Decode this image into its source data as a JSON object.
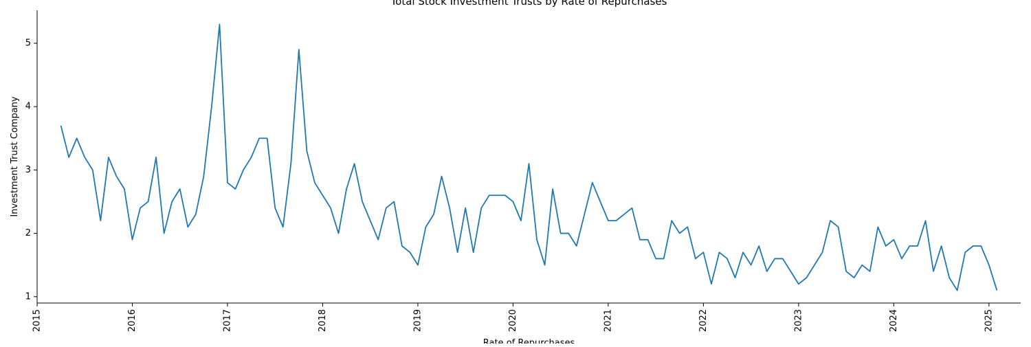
{
  "chart_data": {
    "type": "line",
    "title": "Total Stock Investment Trusts by Rate of Repurchases",
    "xlabel": "Rate of Repurchases",
    "ylabel": "Investment Trust Company",
    "x_ticks": [
      "2015",
      "2016",
      "2017",
      "2018",
      "2019",
      "2020",
      "2021",
      "2022",
      "2023",
      "2024",
      "2025"
    ],
    "y_ticks": [
      "1",
      "2",
      "3",
      "4",
      "5"
    ],
    "xlim": [
      "2015-01",
      "2025-05"
    ],
    "ylim": [
      0.9,
      5.52
    ],
    "grid": false,
    "legend": "none",
    "series": [
      {
        "color": "#1f77b4",
        "x": [
          "2015-04",
          "2015-05",
          "2015-06",
          "2015-07",
          "2015-08",
          "2015-09",
          "2015-10",
          "2015-11",
          "2015-12",
          "2016-01",
          "2016-02",
          "2016-03",
          "2016-04",
          "2016-05",
          "2016-06",
          "2016-07",
          "2016-08",
          "2016-09",
          "2016-10",
          "2016-11",
          "2016-12",
          "2017-01",
          "2017-02",
          "2017-03",
          "2017-04",
          "2017-05",
          "2017-06",
          "2017-07",
          "2017-08",
          "2017-09",
          "2017-10",
          "2017-11",
          "2017-12",
          "2018-01",
          "2018-02",
          "2018-03",
          "2018-04",
          "2018-05",
          "2018-06",
          "2018-07",
          "2018-08",
          "2018-09",
          "2018-10",
          "2018-11",
          "2018-12",
          "2019-01",
          "2019-02",
          "2019-03",
          "2019-04",
          "2019-05",
          "2019-06",
          "2019-07",
          "2019-08",
          "2019-09",
          "2019-10",
          "2019-11",
          "2019-12",
          "2020-01",
          "2020-02",
          "2020-03",
          "2020-04",
          "2020-05",
          "2020-06",
          "2020-07",
          "2020-08",
          "2020-09",
          "2020-10",
          "2020-11",
          "2020-12",
          "2021-01",
          "2021-02",
          "2021-03",
          "2021-04",
          "2021-05",
          "2021-06",
          "2021-07",
          "2021-08",
          "2021-09",
          "2021-10",
          "2021-11",
          "2021-12",
          "2022-01",
          "2022-02",
          "2022-03",
          "2022-04",
          "2022-05",
          "2022-06",
          "2022-07",
          "2022-08",
          "2022-09",
          "2022-10",
          "2022-11",
          "2022-12",
          "2023-01",
          "2023-02",
          "2023-03",
          "2023-04",
          "2023-05",
          "2023-06",
          "2023-07",
          "2023-08",
          "2023-09",
          "2023-10",
          "2023-11",
          "2023-12",
          "2024-01",
          "2024-02",
          "2024-03",
          "2024-04",
          "2024-05",
          "2024-06",
          "2024-07",
          "2024-08",
          "2024-09",
          "2024-10",
          "2024-11",
          "2024-12",
          "2025-01",
          "2025-02"
        ],
        "values": [
          3.7,
          3.2,
          3.5,
          3.2,
          3.0,
          2.2,
          3.2,
          2.9,
          2.7,
          1.9,
          2.4,
          2.5,
          3.2,
          2.0,
          2.5,
          2.7,
          2.1,
          2.3,
          2.9,
          4.0,
          5.3,
          2.8,
          2.7,
          3.0,
          3.2,
          3.5,
          3.5,
          2.4,
          2.1,
          3.1,
          4.9,
          3.3,
          2.8,
          2.6,
          2.4,
          2.0,
          2.7,
          3.1,
          2.5,
          2.2,
          1.9,
          2.4,
          2.5,
          1.8,
          1.7,
          1.5,
          2.1,
          2.3,
          2.9,
          2.4,
          1.7,
          2.4,
          1.7,
          2.4,
          2.6,
          2.6,
          2.6,
          2.5,
          2.2,
          3.1,
          1.9,
          1.5,
          2.7,
          2.0,
          2.0,
          1.8,
          2.3,
          2.8,
          2.5,
          2.2,
          2.2,
          2.3,
          2.4,
          1.9,
          1.9,
          1.6,
          1.6,
          2.2,
          2.0,
          2.1,
          1.6,
          1.7,
          1.2,
          1.7,
          1.6,
          1.3,
          1.7,
          1.5,
          1.8,
          1.4,
          1.6,
          1.6,
          1.4,
          1.2,
          1.3,
          1.5,
          1.7,
          2.2,
          2.1,
          1.4,
          1.3,
          1.5,
          1.4,
          2.1,
          1.8,
          1.9,
          1.6,
          1.8,
          1.8,
          2.2,
          1.4,
          1.8,
          1.3,
          1.1,
          1.7,
          1.8,
          1.8,
          1.5,
          1.1
        ]
      }
    ]
  }
}
